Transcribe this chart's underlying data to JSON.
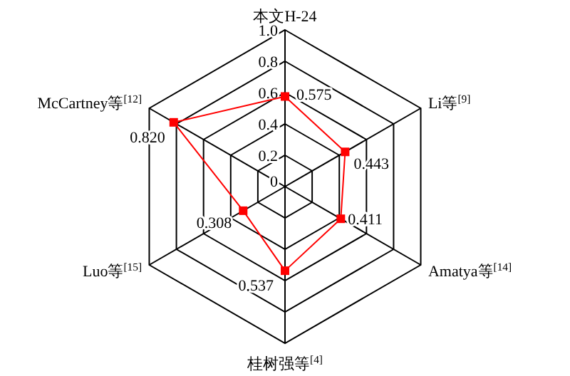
{
  "chart_data": {
    "type": "radar",
    "categories": [
      "本文H-24",
      "Li等$^{[9]}$",
      "Amatya等$^{[14]}$",
      "桂树强等$^{[4]}$",
      "Luo等$^{[15]}$",
      "McCartney等$^{[12]}$"
    ],
    "series": [
      {
        "color": "#ff0000",
        "values": [
          0.575,
          0.443,
          0.411,
          0.537,
          0.308,
          0.82
        ],
        "value_labels": [
          "0.575",
          "0.443",
          "0.411",
          "0.537",
          "0.308",
          "0.820"
        ]
      }
    ],
    "ylim": [
      0,
      1
    ],
    "yticks": [
      0,
      0.2,
      0.4,
      0.6,
      0.8,
      {
        "value": 1,
        "label": "1.0"
      }
    ],
    "grid": true,
    "marker": "square",
    "line_style": "solid"
  }
}
